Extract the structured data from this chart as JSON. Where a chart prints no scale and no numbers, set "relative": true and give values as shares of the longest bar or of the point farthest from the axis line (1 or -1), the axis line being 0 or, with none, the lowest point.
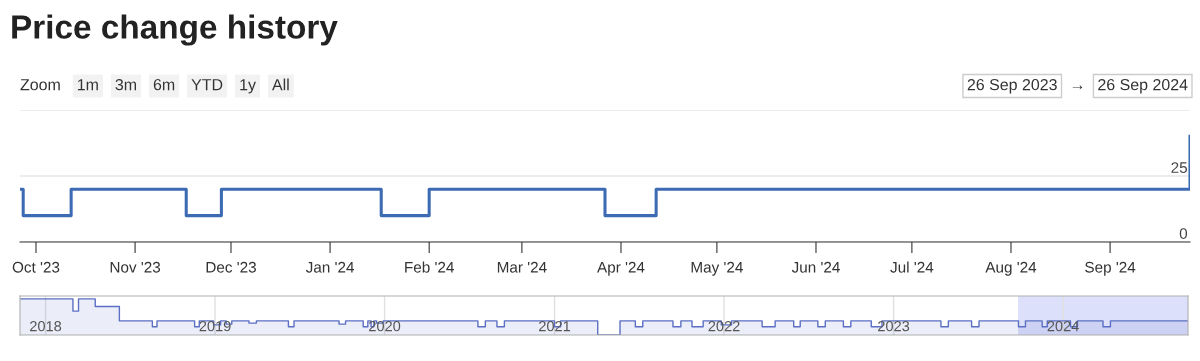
{
  "chart_data": [
    {
      "type": "step",
      "title": "Price change history",
      "annotations": [
        "Zoom",
        "1m",
        "3m",
        "6m",
        "YTD",
        "1y",
        "All",
        "26 Sep 2023",
        "→",
        "26 Sep 2024"
      ],
      "x": [
        "2023-09-26",
        "2023-09-27",
        "2023-10-12",
        "2023-11-17",
        "2023-11-28",
        "2024-01-17",
        "2024-02-01",
        "2024-03-27",
        "2024-04-12",
        "2024-09-26"
      ],
      "series": [
        {
          "color": "#3d6bb3",
          "values": [
            20,
            10,
            20,
            10,
            20,
            10,
            20,
            10,
            20,
            40
          ]
        }
      ],
      "xlim": [
        "2023-09-26",
        "2024-09-26"
      ],
      "xticks": [
        {
          "value": "2023-10-01",
          "label": "Oct '23"
        },
        {
          "value": "2023-11-01",
          "label": "Nov '23"
        },
        {
          "value": "2023-12-01",
          "label": "Dec '23"
        },
        {
          "value": "2024-01-01",
          "label": "Jan '24"
        },
        {
          "value": "2024-02-01",
          "label": "Feb '24"
        },
        {
          "value": "2024-03-01",
          "label": "Mar '24"
        },
        {
          "value": "2024-04-01",
          "label": "Apr '24"
        },
        {
          "value": "2024-05-01",
          "label": "May '24"
        },
        {
          "value": "2024-06-01",
          "label": "Jun '24"
        },
        {
          "value": "2024-07-01",
          "label": "Jul '24"
        },
        {
          "value": "2024-08-01",
          "label": "Aug '24"
        },
        {
          "value": "2024-09-01",
          "label": "Sep '24"
        }
      ],
      "ylim": [
        0,
        50
      ],
      "yticks": [
        0,
        25,
        {
          "value": 50,
          "label": null
        }
      ],
      "grid": "y"
    },
    {
      "type": "area",
      "relative": true,
      "x": [
        "2017-11-07",
        "2018-03-01",
        "2018-03-13",
        "2018-04-18",
        "2018-06-09",
        "2018-08-19",
        "2018-08-29",
        "2018-11-18",
        "2018-11-28",
        "2018-12-29",
        "2019-01-13",
        "2019-01-25",
        "2019-02-06",
        "2019-03-15",
        "2019-03-31",
        "2019-06-08",
        "2019-06-20",
        "2019-09-25",
        "2019-10-09",
        "2019-11-16",
        "2019-11-26",
        "2019-12-03",
        "2019-12-09",
        "2019-12-15",
        "2019-12-29",
        "2020-07-20",
        "2020-08-05",
        "2020-08-30",
        "2020-09-15",
        "2021-01-01",
        "2021-01-14",
        "2021-04-04",
        "2021-05-22",
        "2021-06-24",
        "2021-07-10",
        "2021-09-13",
        "2021-09-30",
        "2021-10-24",
        "2021-11-17",
        "2021-12-26",
        "2022-01-17",
        "2022-03-24",
        "2022-04-21",
        "2022-05-31",
        "2022-06-14",
        "2022-07-22",
        "2022-08-07",
        "2022-09-15",
        "2022-10-01",
        "2022-11-14",
        "2022-12-07",
        "2023-04-13",
        "2023-04-29",
        "2023-06-18",
        "2023-07-04",
        "2023-09-27",
        "2023-10-12",
        "2023-11-17",
        "2023-11-28",
        "2024-01-17",
        "2024-02-01",
        "2024-03-27",
        "2024-04-12",
        "2024-09-26"
      ],
      "series": [
        {
          "color": "#5b6fc4",
          "values": [
            1,
            0.66,
            1,
            0.79,
            0.39,
            0.23,
            0.39,
            0.23,
            0.39,
            0.28,
            0.39,
            0.3,
            0.39,
            0.33,
            0.39,
            0.23,
            0.39,
            0.3,
            0.39,
            0.23,
            0.39,
            0.23,
            0.39,
            0.33,
            0.39,
            0.23,
            0.39,
            0.23,
            0.39,
            0.23,
            0.39,
            0,
            0.39,
            0.23,
            0.39,
            0.23,
            0.39,
            0.23,
            0.39,
            0.28,
            0.39,
            0.23,
            0.39,
            0.23,
            0.39,
            0.23,
            0.39,
            0.23,
            0.39,
            0.23,
            0.39,
            0.23,
            0.39,
            0.23,
            0.39,
            0.23,
            0.39,
            0.23,
            0.39,
            0.23,
            0.39,
            0.23,
            0.39,
            0.39
          ]
        }
      ],
      "xlim": [
        "2017-11-07",
        "2024-09-26"
      ],
      "xticks": [
        {
          "value": "2018-01-01",
          "label": "2018"
        },
        {
          "value": "2019-01-01",
          "label": "2019"
        },
        {
          "value": "2020-01-01",
          "label": "2020"
        },
        {
          "value": "2021-01-01",
          "label": "2021"
        },
        {
          "value": "2022-01-01",
          "label": "2022"
        },
        {
          "value": "2023-01-01",
          "label": "2023"
        },
        {
          "value": "2024-01-01",
          "label": "2024"
        }
      ],
      "bands": [
        {
          "axis": "x",
          "from": "2023-09-26",
          "to": "2024-09-26",
          "color": "#c7ccf7"
        }
      ],
      "grid": "x"
    }
  ]
}
